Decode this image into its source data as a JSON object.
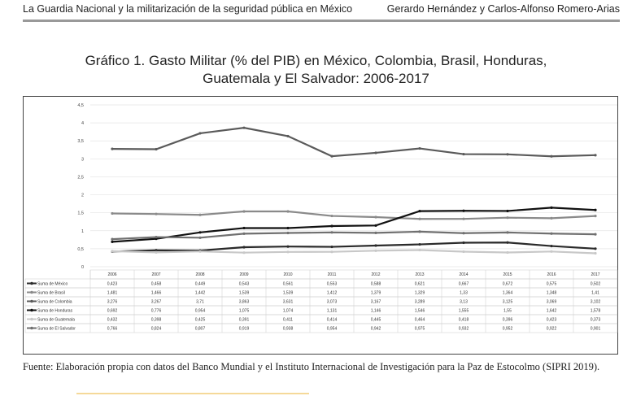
{
  "header": {
    "left": "La Guardia Nacional y la militarización de la seguridad pública en México",
    "right": "Gerardo Hernández  y Carlos-Alfonso Romero-Arias"
  },
  "source": "Fuente: Elaboración propia con datos del Banco Mundial y el Instituto Internacional de Investigación para la Paz de Estocolmo (SIPRI 2019).",
  "chart_data": {
    "type": "line",
    "title_line1": "Gráfico 1. Gasto Militar (% del PIB) en México, Colombia, Brasil, Honduras,",
    "title_line2": "Guatemala y El Salvador: 2006-2017",
    "ylim": [
      0,
      4.5
    ],
    "yticks": [
      "0",
      "0,5",
      "1",
      "1,5",
      "2",
      "2,5",
      "3",
      "3,5",
      "4",
      "4,5"
    ],
    "categories": [
      "2006",
      "2007",
      "2008",
      "2009",
      "2010",
      "2011",
      "2012",
      "2013",
      "2014",
      "2015",
      "2016",
      "2017"
    ],
    "legend_placement": "bottom data table",
    "series": [
      {
        "name": "Suma de México",
        "color": "#2a2a2a",
        "values": [
          0.423,
          0.458,
          0.449,
          0.543,
          0.561,
          0.553,
          0.588,
          0.621,
          0.667,
          0.672,
          0.575,
          0.502
        ],
        "labels": [
          "0,423",
          "0,458",
          "0,449",
          "0,543",
          "0,561",
          "0,553",
          "0,588",
          "0,621",
          "0,667",
          "0,672",
          "0,575",
          "0,502"
        ]
      },
      {
        "name": "Suma de Brasil",
        "color": "#8a8a8a",
        "values": [
          1.481,
          1.466,
          1.442,
          1.539,
          1.539,
          1.412,
          1.379,
          1.329,
          1.33,
          1.364,
          1.348,
          1.41
        ],
        "labels": [
          "1,481",
          "1,466",
          "1,442",
          "1,539",
          "1,539",
          "1,412",
          "1,379",
          "1,329",
          "1,33",
          "1,364",
          "1,348",
          "1,41"
        ]
      },
      {
        "name": "Suma de Colombia",
        "color": "#5a5a5a",
        "values": [
          3.276,
          3.267,
          3.71,
          3.863,
          3.631,
          3.073,
          3.167,
          3.289,
          3.13,
          3.125,
          3.069,
          3.102
        ],
        "labels": [
          "3,276",
          "3,267",
          "3,71",
          "3,863",
          "3,631",
          "3,073",
          "3,167",
          "3,289",
          "3,13",
          "3,125",
          "3,069",
          "3,102"
        ]
      },
      {
        "name": "Suma de Honduras",
        "color": "#111111",
        "values": [
          0.692,
          0.776,
          0.954,
          1.075,
          1.074,
          1.131,
          1.146,
          1.546,
          1.555,
          1.55,
          1.642,
          1.578
        ],
        "labels": [
          "0,692",
          "0,776",
          "0,954",
          "1,075",
          "1,074",
          "1,131",
          "1,146",
          "1,546",
          "1,555",
          "1,55",
          "1,642",
          "1,578"
        ]
      },
      {
        "name": "Suma de Guatemala",
        "color": "#c8c8c8",
        "values": [
          0.432,
          0.398,
          0.425,
          0.391,
          0.411,
          0.414,
          0.445,
          0.464,
          0.418,
          0.396,
          0.423,
          0.373
        ],
        "labels": [
          "0,432",
          "0,398",
          "0,425",
          "0,391",
          "0,411",
          "0,414",
          "0,445",
          "0,464",
          "0,418",
          "0,396",
          "0,423",
          "0,373"
        ]
      },
      {
        "name": "Suma de El Salvador",
        "color": "#707070",
        "values": [
          0.766,
          0.824,
          0.807,
          0.919,
          0.938,
          0.954,
          0.942,
          0.975,
          0.932,
          0.952,
          0.922,
          0.901
        ],
        "labels": [
          "0,766",
          "0,824",
          "0,807",
          "0,919",
          "0,938",
          "0,954",
          "0,942",
          "0,975",
          "0,932",
          "0,952",
          "0,922",
          "0,901"
        ]
      }
    ]
  }
}
